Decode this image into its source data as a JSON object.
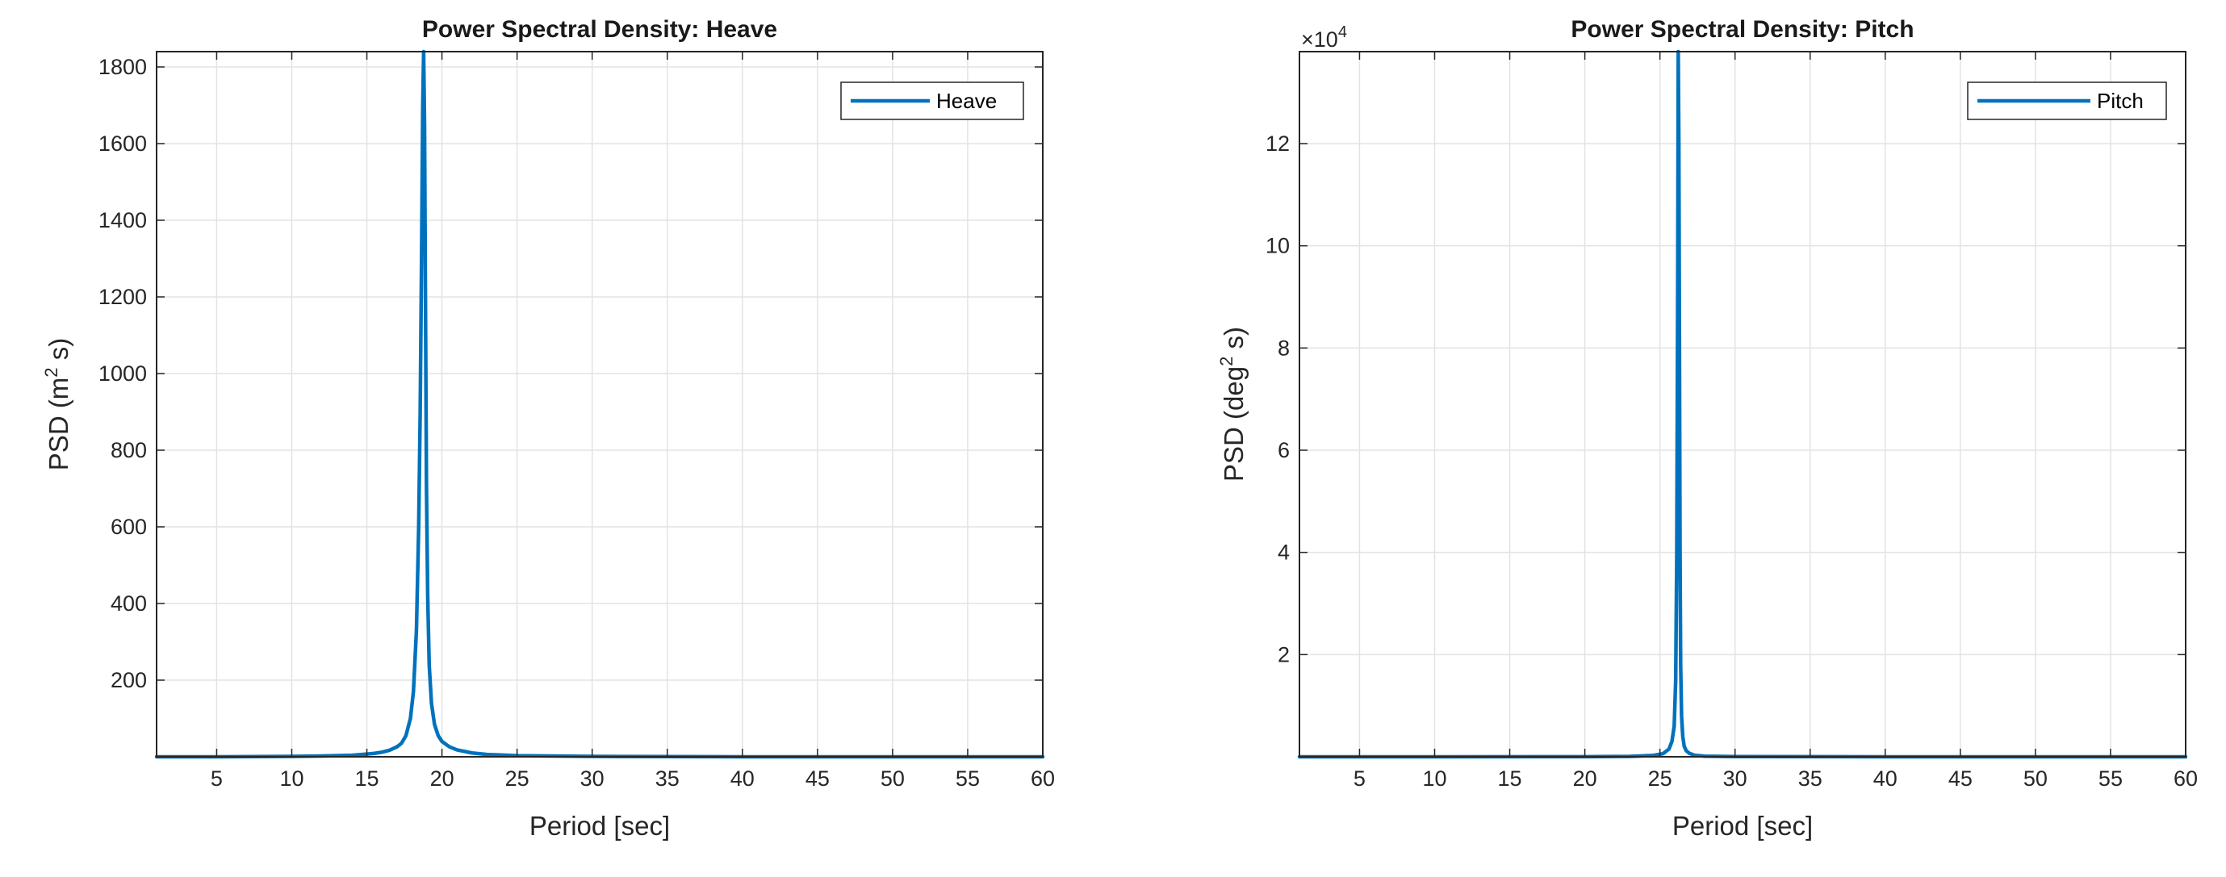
{
  "chart_data": [
    {
      "type": "line",
      "title": "Power Spectral Density: Heave",
      "xlabel": "Period [sec]",
      "ylabel_prefix": "PSD (m",
      "ylabel_sup": "2",
      "ylabel_suffix": " s)",
      "xlim": [
        1,
        60
      ],
      "ylim": [
        0,
        1840
      ],
      "xticks": [
        5,
        10,
        15,
        20,
        25,
        30,
        35,
        40,
        45,
        50,
        55,
        60
      ],
      "yticks": [
        200,
        400,
        600,
        800,
        1000,
        1200,
        1400,
        1600,
        1800
      ],
      "ytick_labels": [
        "200",
        "400",
        "600",
        "800",
        "1000",
        "1200",
        "1400",
        "1600",
        "1800"
      ],
      "exponent_label": "",
      "grid": true,
      "legend_position": "top-right",
      "color": "#0072BD",
      "series": [
        {
          "name": "Heave",
          "x": [
            1,
            5,
            10,
            12,
            14,
            15,
            15.5,
            16,
            16.5,
            17,
            17.3,
            17.6,
            17.9,
            18.1,
            18.3,
            18.45,
            18.55,
            18.65,
            18.72,
            18.78,
            18.84,
            18.9,
            18.97,
            19.05,
            19.15,
            19.3,
            19.5,
            19.75,
            20,
            20.5,
            21,
            22,
            23,
            25,
            30,
            40,
            50,
            60
          ],
          "values": [
            0,
            0,
            1,
            2,
            4,
            7,
            9,
            12,
            17,
            26,
            35,
            55,
            100,
            170,
            330,
            600,
            900,
            1350,
            1700,
            1840,
            1650,
            1200,
            700,
            420,
            240,
            140,
            85,
            55,
            40,
            26,
            18,
            10,
            6,
            3,
            1,
            0,
            0,
            0
          ]
        }
      ]
    },
    {
      "type": "line",
      "title": "Power Spectral Density: Pitch",
      "xlabel": "Period [sec]",
      "ylabel_prefix": "PSD (deg",
      "ylabel_sup": "2",
      "ylabel_suffix": " s)",
      "xlim": [
        1,
        60
      ],
      "ylim": [
        0,
        138000
      ],
      "xticks": [
        5,
        10,
        15,
        20,
        25,
        30,
        35,
        40,
        45,
        50,
        55,
        60
      ],
      "yticks": [
        20000,
        40000,
        60000,
        80000,
        100000,
        120000
      ],
      "ytick_labels": [
        "2",
        "4",
        "6",
        "8",
        "10",
        "12"
      ],
      "exponent_label": "×10",
      "exponent_sup": "4",
      "grid": true,
      "legend_position": "top-right",
      "color": "#0072BD",
      "series": [
        {
          "name": "Pitch",
          "x": [
            1,
            10,
            20,
            23,
            24.5,
            25.2,
            25.6,
            25.8,
            25.95,
            26.05,
            26.12,
            26.18,
            26.22,
            26.26,
            26.3,
            26.34,
            26.38,
            26.44,
            26.52,
            26.62,
            26.75,
            26.95,
            27.3,
            28,
            30,
            40,
            60
          ],
          "values": [
            0,
            0,
            20,
            80,
            250,
            600,
            1500,
            3000,
            6000,
            15000,
            40000,
            90000,
            138000,
            120000,
            80000,
            40000,
            18000,
            8000,
            4000,
            2000,
            1200,
            700,
            300,
            120,
            40,
            5,
            0
          ]
        }
      ]
    }
  ]
}
